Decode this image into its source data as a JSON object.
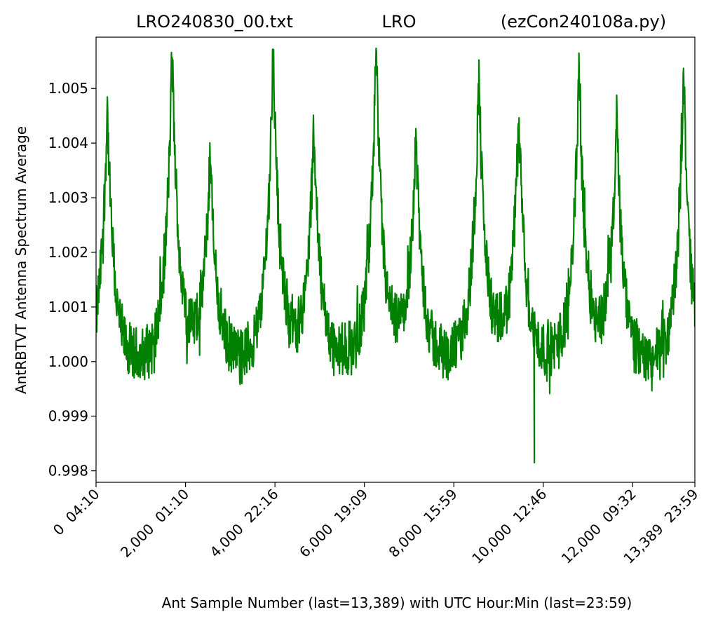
{
  "chart_data": {
    "type": "line",
    "title_parts": [
      "LRO240830_00.txt",
      "LRO",
      "(ezCon240108a.py)"
    ],
    "xlabel": "Ant Sample Number (last=13,389) with UTC Hour:Min (last=23:59)",
    "ylabel": "AntRBTVT Antenna Spectrum Average",
    "xlim": [
      0,
      13389
    ],
    "ylim": [
      0.99779,
      1.00594
    ],
    "grid": false,
    "line_color": "#008000",
    "x_ticks": [
      {
        "value": 0,
        "label": "0  04:10"
      },
      {
        "value": 2000,
        "label": "2,000  01:10"
      },
      {
        "value": 4000,
        "label": "4,000  22:16"
      },
      {
        "value": 6000,
        "label": "6,000  19:09"
      },
      {
        "value": 8000,
        "label": "8,000  15:59"
      },
      {
        "value": 10000,
        "label": "10,000  12:46"
      },
      {
        "value": 12000,
        "label": "12,000  09:32"
      },
      {
        "value": 13389,
        "label": "13,389  23:59"
      }
    ],
    "y_ticks": [
      {
        "value": 0.998,
        "label": "0.998"
      },
      {
        "value": 0.999,
        "label": "0.999"
      },
      {
        "value": 1.0,
        "label": "1.000"
      },
      {
        "value": 1.001,
        "label": "1.001"
      },
      {
        "value": 1.002,
        "label": "1.002"
      },
      {
        "value": 1.003,
        "label": "1.003"
      },
      {
        "value": 1.004,
        "label": "1.004"
      },
      {
        "value": 1.005,
        "label": "1.005"
      }
    ],
    "baseline": 0.99955,
    "noise": 0.0008,
    "peaks": [
      {
        "x": 250,
        "y": 1.0046
      },
      {
        "x": 1700,
        "y": 1.0055
      },
      {
        "x": 2550,
        "y": 1.0035
      },
      {
        "x": 3960,
        "y": 1.0056
      },
      {
        "x": 4870,
        "y": 1.004
      },
      {
        "x": 6260,
        "y": 1.0055
      },
      {
        "x": 7150,
        "y": 1.0039
      },
      {
        "x": 8560,
        "y": 1.005
      },
      {
        "x": 9450,
        "y": 1.0043
      },
      {
        "x": 10800,
        "y": 1.0052
      },
      {
        "x": 11640,
        "y": 1.0042
      },
      {
        "x": 13140,
        "y": 1.0053
      }
    ],
    "minimum": {
      "x": 9800,
      "y": 0.99815
    }
  }
}
